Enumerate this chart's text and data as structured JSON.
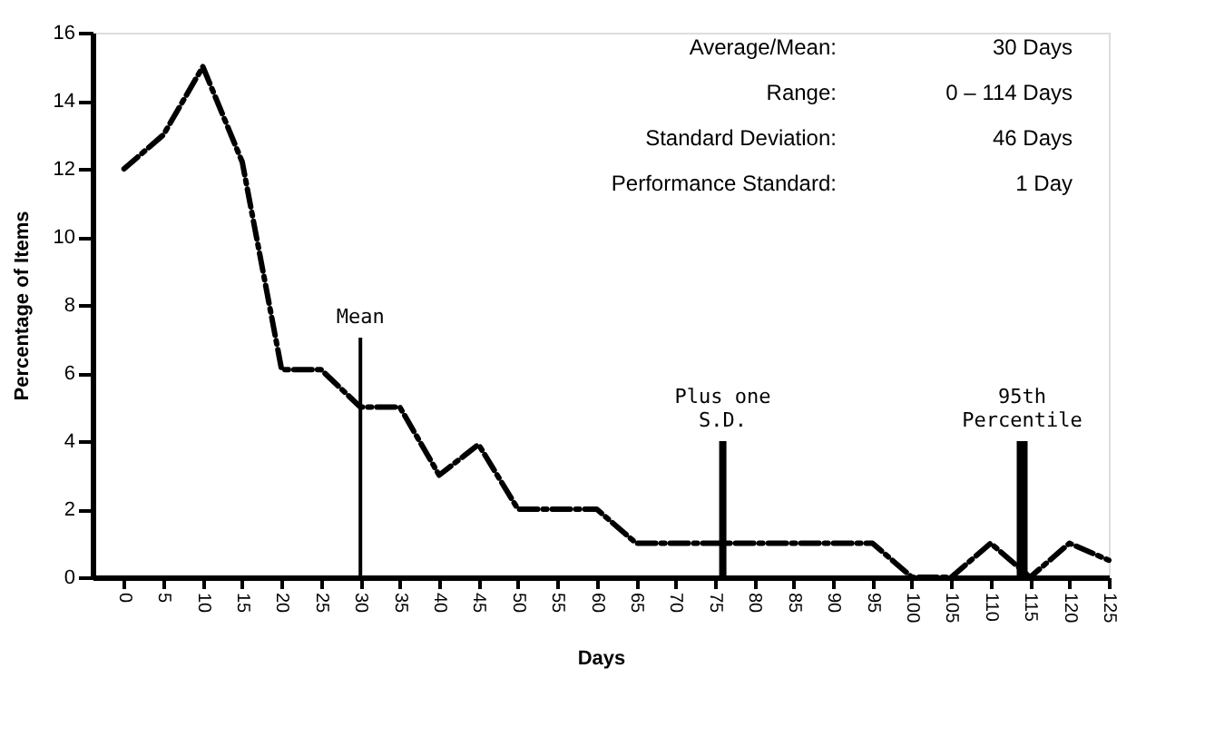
{
  "chart_data": {
    "type": "line",
    "xlabel": "Days",
    "ylabel": "Percentage of Items",
    "x": [
      0,
      5,
      10,
      15,
      20,
      25,
      30,
      35,
      40,
      45,
      50,
      55,
      60,
      65,
      70,
      75,
      80,
      85,
      90,
      95,
      100,
      105,
      110,
      115,
      120,
      125
    ],
    "series": [
      {
        "color": "#000000",
        "values": [
          12,
          13,
          15,
          12.2,
          6.1,
          6.1,
          5,
          5,
          3,
          3.9,
          2,
          2,
          2,
          1,
          1,
          1,
          1,
          1,
          1,
          1,
          0,
          0,
          1,
          0,
          1,
          0.5
        ]
      }
    ],
    "xlim": [
      -4,
      125
    ],
    "xticks": [
      0,
      5,
      10,
      15,
      20,
      25,
      30,
      35,
      40,
      45,
      50,
      55,
      60,
      65,
      70,
      75,
      80,
      85,
      90,
      95,
      100,
      105,
      110,
      115,
      120,
      125
    ],
    "ylim": [
      0,
      16
    ],
    "yticks": [
      0,
      2,
      4,
      6,
      8,
      10,
      12,
      14,
      16
    ],
    "grid": false,
    "marker": "none",
    "line_style": "dashed",
    "ref_lines": [
      {
        "axis": "x",
        "value": 30,
        "label": "Mean"
      },
      {
        "axis": "x",
        "value": 76,
        "label": "Plus one S.D."
      },
      {
        "axis": "x",
        "value": 114,
        "label": "95th Percentile"
      }
    ],
    "annotations": [
      "Average/Mean:",
      "30 Days",
      "Range:",
      "0 – 114 Days",
      "Standard Deviation:",
      "46 Days",
      "Performance Standard:",
      "1 Day"
    ]
  }
}
